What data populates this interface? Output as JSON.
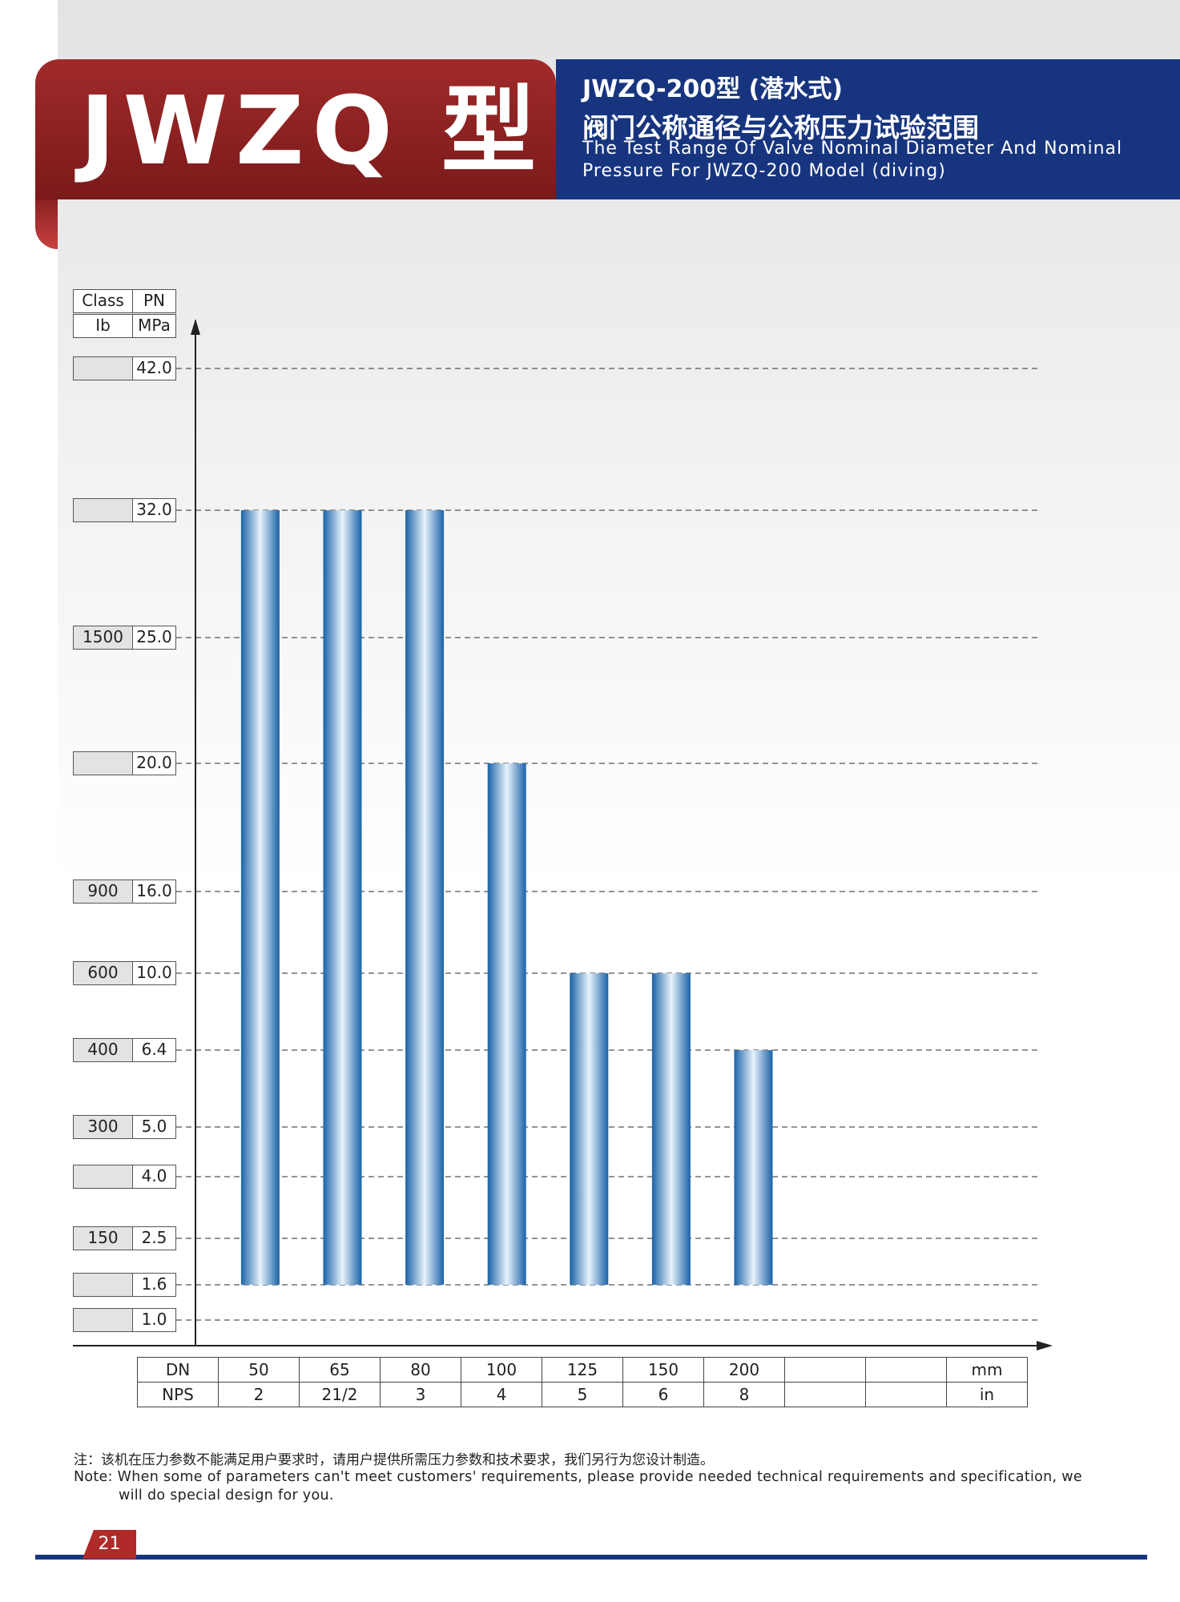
{
  "header": {
    "brand": "JWZQ 型",
    "title_zh_1": "JWZQ-200型 (潜水式)",
    "title_zh_2": "阀门公称通径与公称压力试验范围",
    "title_en_1": "The Test Range Of Valve Nominal Diameter And Nominal",
    "title_en_2": "Pressure For JWZQ-200 Model (diving)"
  },
  "y_header": {
    "class_label": "Class",
    "pn_label": "PN",
    "class_unit": "Ib",
    "pn_unit": "MPa"
  },
  "x_table": {
    "row1": [
      "DN",
      "50",
      "65",
      "80",
      "100",
      "125",
      "150",
      "200",
      "",
      "",
      "mm"
    ],
    "row2": [
      "NPS",
      "2",
      "21/2",
      "3",
      "4",
      "5",
      "6",
      "8",
      "",
      "",
      "in"
    ]
  },
  "chart_data": {
    "type": "bar",
    "title": "",
    "xlabel": "DN",
    "ylabel": "PN (MPa)",
    "categories": [
      "50",
      "65",
      "80",
      "100",
      "125",
      "150",
      "200"
    ],
    "series": [
      {
        "values": [
          32.0,
          32.0,
          32.0,
          20.0,
          10.0,
          10.0,
          6.4
        ],
        "base": 1.6
      }
    ],
    "y_ticks": [
      {
        "class": "",
        "pn": "42.0"
      },
      {
        "class": "",
        "pn": "32.0"
      },
      {
        "class": "1500",
        "pn": "25.0"
      },
      {
        "class": "",
        "pn": "20.0"
      },
      {
        "class": "900",
        "pn": "16.0"
      },
      {
        "class": "600",
        "pn": "10.0"
      },
      {
        "class": "400",
        "pn": "6.4"
      },
      {
        "class": "300",
        "pn": "5.0"
      },
      {
        "class": "",
        "pn": "4.0"
      },
      {
        "class": "150",
        "pn": "2.5"
      },
      {
        "class": "",
        "pn": "1.6"
      },
      {
        "class": "",
        "pn": "1.0"
      }
    ],
    "grid": "dashed",
    "bar_color": "#1d6db5"
  },
  "notes": {
    "zh": "注：该机在压力参数不能满足用户要求时，请用户提供所需压力参数和技术要求，我们另行为您设计制造。",
    "en_1": "Note: When some of parameters can't meet customers' requirements, please provide needed technical requirements and specification, we",
    "en_2": "will do special design for you."
  },
  "footer": {
    "page_number": "21"
  }
}
